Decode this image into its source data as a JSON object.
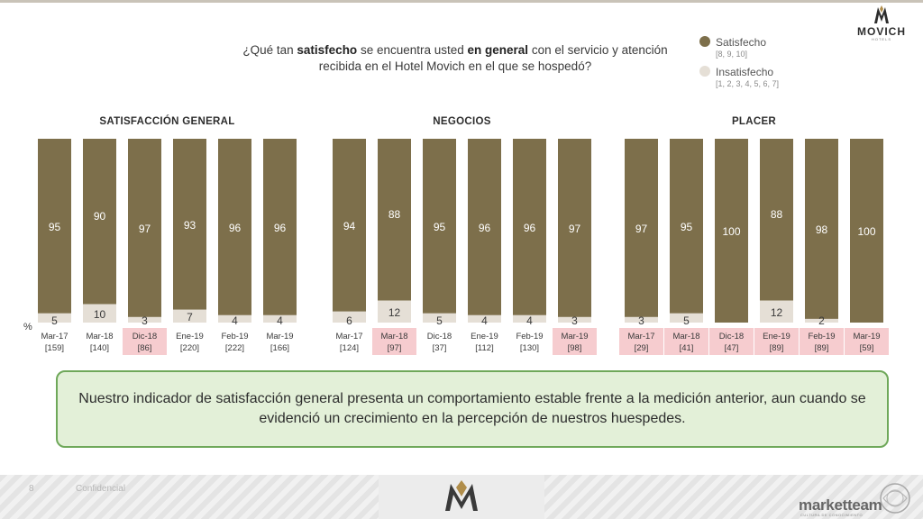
{
  "question": {
    "p1": "¿Qué tan ",
    "b1": "satisfecho",
    "p2": " se encuentra usted ",
    "b2": "en general",
    "p3": " con el servicio y atención recibida en el Hotel Movich en el que se hospedó?"
  },
  "legend": {
    "satisfied_label": "Satisfecho",
    "satisfied_range": "[8, 9, 10]",
    "unsatisfied_label": "Insatisfecho",
    "unsatisfied_range": "[1, 2, 3, 4, 5, 6, 7]"
  },
  "brand": {
    "name": "MOVICH",
    "sub": "HOTELS"
  },
  "colors": {
    "satisfied": "#7d6f4b",
    "unsatisfied": "#e5dfd6",
    "highlight": "#f6cccf"
  },
  "chart_data": [
    {
      "type": "bar",
      "title": "SATISFACCIÓN GENERAL",
      "unit_label": "%",
      "stacked": true,
      "ylim": [
        0,
        100
      ],
      "categories": [
        "Mar-17",
        "Mar-18",
        "Dic-18",
        "Ene-19",
        "Feb-19",
        "Mar-19"
      ],
      "base_sizes": [
        "[159]",
        "[140]",
        "[86]",
        "[220]",
        "[222]",
        "[166]"
      ],
      "highlighted": [
        false,
        false,
        true,
        false,
        false,
        false
      ],
      "series": [
        {
          "name": "Satisfecho",
          "values": [
            95,
            90,
            97,
            93,
            96,
            96
          ]
        },
        {
          "name": "Insatisfecho",
          "values": [
            5,
            10,
            3,
            7,
            4,
            4
          ]
        }
      ]
    },
    {
      "type": "bar",
      "title": "NEGOCIOS",
      "stacked": true,
      "ylim": [
        0,
        100
      ],
      "categories": [
        "Mar-17",
        "Mar-18",
        "Dic-18",
        "Ene-19",
        "Feb-19",
        "Mar-19"
      ],
      "base_sizes": [
        "[124]",
        "[97]",
        "[37]",
        "[112]",
        "[130]",
        "[98]"
      ],
      "highlighted": [
        false,
        true,
        false,
        false,
        false,
        true
      ],
      "series": [
        {
          "name": "Satisfecho",
          "values": [
            94,
            88,
            95,
            96,
            96,
            97
          ]
        },
        {
          "name": "Insatisfecho",
          "values": [
            6,
            12,
            5,
            4,
            4,
            3
          ]
        }
      ]
    },
    {
      "type": "bar",
      "title": "PLACER",
      "stacked": true,
      "ylim": [
        0,
        100
      ],
      "categories": [
        "Mar-17",
        "Mar-18",
        "Dic-18",
        "Ene-19",
        "Feb-19",
        "Mar-19"
      ],
      "base_sizes": [
        "[29]",
        "[41]",
        "[47]",
        "[89]",
        "[89]",
        "[59]"
      ],
      "highlighted": [
        true,
        true,
        true,
        true,
        true,
        true
      ],
      "series": [
        {
          "name": "Satisfecho",
          "values": [
            97,
            95,
            100,
            88,
            98,
            100
          ]
        },
        {
          "name": "Insatisfecho",
          "values": [
            3,
            5,
            null,
            12,
            2,
            null
          ]
        }
      ]
    }
  ],
  "conclusion": "Nuestro indicador de satisfacción general presenta un comportamiento estable frente a la medición anterior, aun cuando se evidenció un crecimiento en la percepción de nuestros huespedes.",
  "footer": {
    "page": "8",
    "confidential": "Confidencial",
    "agency": "marketteam",
    "agency_sub": "CULTURA DE CONOCIMIENTO"
  }
}
